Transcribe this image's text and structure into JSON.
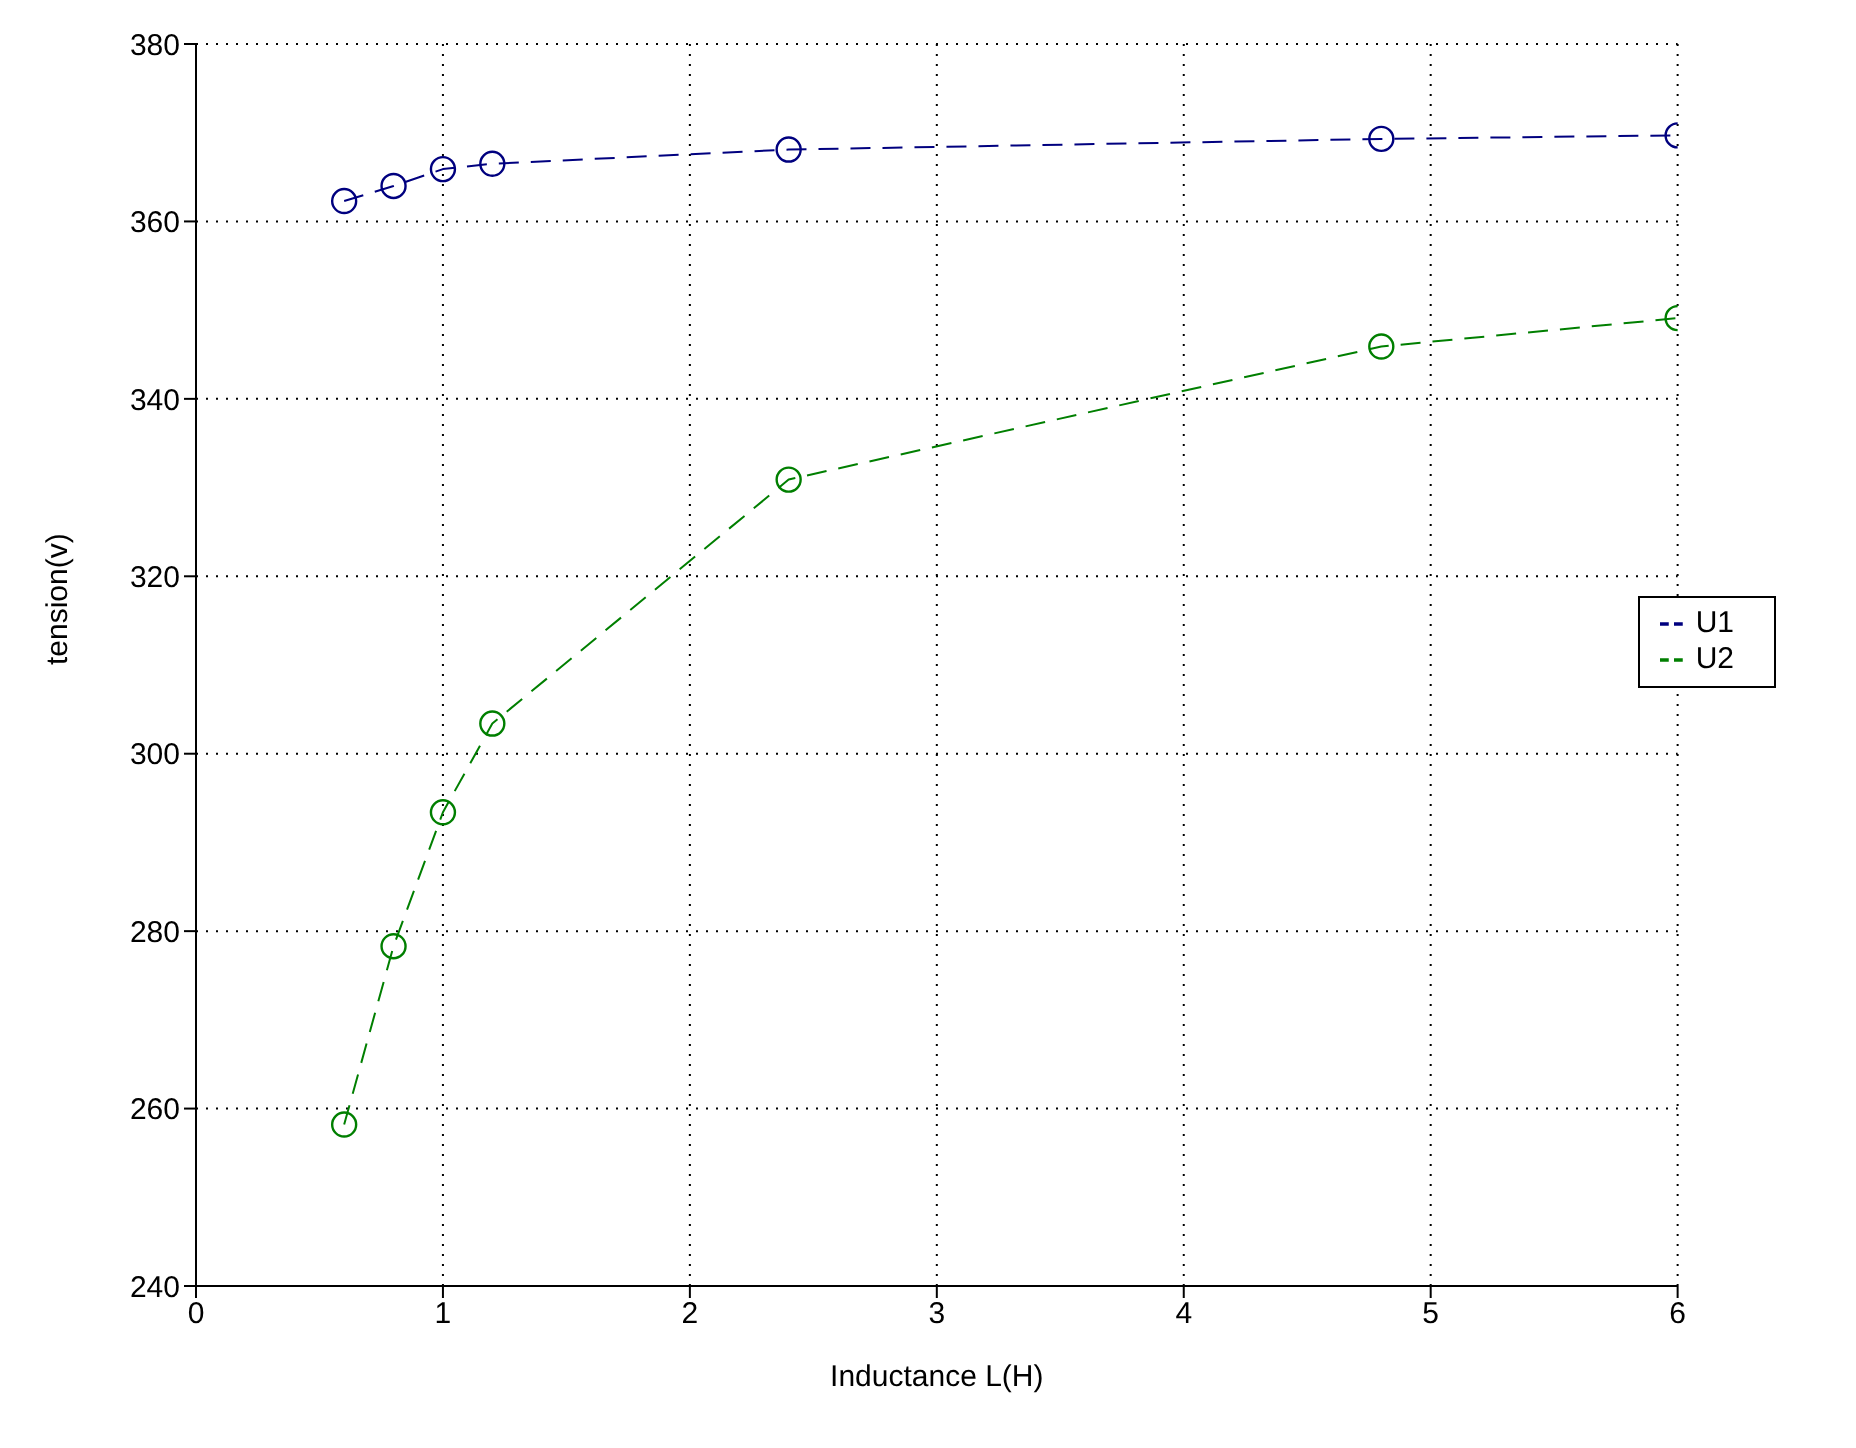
{
  "chart_data": {
    "type": "line",
    "xlabel": "Inductance L(H)",
    "ylabel": "tension(v)",
    "x": [
      0.6,
      0.8,
      1.0,
      1.2,
      2.4,
      4.8,
      6.0
    ],
    "series": [
      {
        "name": "U1",
        "color": "#00007f",
        "values": [
          362.3,
          364.0,
          365.9,
          366.5,
          368.1,
          369.3,
          369.7
        ]
      },
      {
        "name": "U2",
        "color": "#007f00",
        "values": [
          258.2,
          278.3,
          293.4,
          303.4,
          330.9,
          345.9,
          349.1
        ]
      }
    ],
    "xlim": [
      0,
      6
    ],
    "xticks": [
      0,
      1,
      2,
      3,
      4,
      5,
      6
    ],
    "ylim": [
      240,
      380
    ],
    "yticks": [
      240,
      260,
      280,
      300,
      320,
      340,
      360,
      380
    ],
    "grid": true,
    "legend": "right",
    "marker": "circle",
    "line_style": "dashed"
  }
}
